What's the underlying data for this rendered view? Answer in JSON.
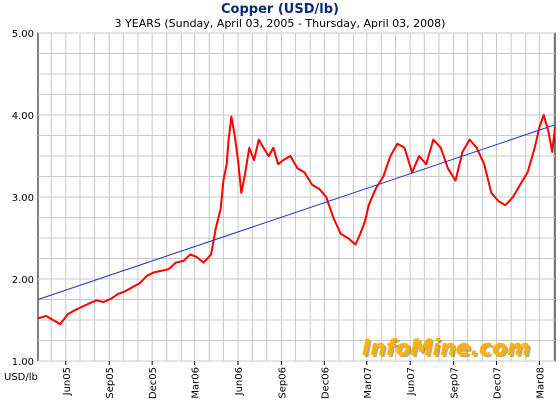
{
  "chart_data": {
    "type": "line",
    "title": "Copper (USD/lb)",
    "subtitle": "3 YEARS (Sunday, April 03, 2005  -  Thursday, April 03, 2008)",
    "ylabel": "USD/lb",
    "ylim": [
      1.0,
      5.0
    ],
    "yticks": [
      "1.00",
      "2.00",
      "3.00",
      "4.00",
      "5.00"
    ],
    "xrange": [
      "2005-04-03",
      "2008-04-03"
    ],
    "xticks": [
      {
        "label": "Jun05",
        "date": "2005-06-01"
      },
      {
        "label": "Sep05",
        "date": "2005-09-01"
      },
      {
        "label": "Dec05",
        "date": "2005-12-01"
      },
      {
        "label": "Mar06",
        "date": "2006-03-01"
      },
      {
        "label": "Jun06",
        "date": "2006-06-01"
      },
      {
        "label": "Sep06",
        "date": "2006-09-01"
      },
      {
        "label": "Dec06",
        "date": "2006-12-01"
      },
      {
        "label": "Mar07",
        "date": "2007-03-01"
      },
      {
        "label": "Jun07",
        "date": "2007-06-01"
      },
      {
        "label": "Sep07",
        "date": "2007-09-01"
      },
      {
        "label": "Dec07",
        "date": "2007-12-01"
      },
      {
        "label": "Mar08",
        "date": "2008-03-01"
      }
    ],
    "grid": true,
    "colors": {
      "price": "#ff0000",
      "trend": "#1f2fd0",
      "grid": "#c8c8c8",
      "title": "#0b2a7a",
      "watermark": "#ffb000"
    },
    "series": [
      {
        "key": "price",
        "x": [
          "2005-04-03",
          "2005-04-20",
          "2005-05-05",
          "2005-05-20",
          "2005-06-05",
          "2005-06-20",
          "2005-07-05",
          "2005-07-20",
          "2005-08-05",
          "2005-08-20",
          "2005-09-05",
          "2005-09-20",
          "2005-10-05",
          "2005-10-20",
          "2005-11-05",
          "2005-11-20",
          "2005-12-05",
          "2005-12-20",
          "2006-01-05",
          "2006-01-20",
          "2006-02-05",
          "2006-02-20",
          "2006-03-05",
          "2006-03-20",
          "2006-04-05",
          "2006-04-15",
          "2006-04-25",
          "2006-05-01",
          "2006-05-08",
          "2006-05-12",
          "2006-05-18",
          "2006-05-25",
          "2006-06-01",
          "2006-06-08",
          "2006-06-15",
          "2006-06-25",
          "2006-07-05",
          "2006-07-15",
          "2006-07-25",
          "2006-08-05",
          "2006-08-15",
          "2006-08-25",
          "2006-09-05",
          "2006-09-20",
          "2006-10-05",
          "2006-10-20",
          "2006-11-05",
          "2006-11-20",
          "2006-12-05",
          "2006-12-20",
          "2007-01-05",
          "2007-01-20",
          "2007-02-05",
          "2007-02-15",
          "2007-02-25",
          "2007-03-05",
          "2007-03-20",
          "2007-04-05",
          "2007-04-20",
          "2007-05-05",
          "2007-05-20",
          "2007-06-05",
          "2007-06-20",
          "2007-07-05",
          "2007-07-20",
          "2007-08-05",
          "2007-08-20",
          "2007-09-05",
          "2007-09-20",
          "2007-10-05",
          "2007-10-20",
          "2007-11-05",
          "2007-11-20",
          "2007-12-05",
          "2007-12-20",
          "2008-01-05",
          "2008-01-20",
          "2008-02-05",
          "2008-02-20",
          "2008-03-01",
          "2008-03-10",
          "2008-03-20",
          "2008-03-28",
          "2008-04-03"
        ],
        "values": [
          1.52,
          1.55,
          1.5,
          1.45,
          1.57,
          1.62,
          1.66,
          1.7,
          1.74,
          1.72,
          1.76,
          1.82,
          1.85,
          1.9,
          1.95,
          2.04,
          2.08,
          2.1,
          2.12,
          2.2,
          2.22,
          2.3,
          2.27,
          2.2,
          2.3,
          2.62,
          2.85,
          3.2,
          3.4,
          3.7,
          3.98,
          3.75,
          3.45,
          3.05,
          3.25,
          3.6,
          3.45,
          3.7,
          3.6,
          3.5,
          3.6,
          3.4,
          3.45,
          3.5,
          3.35,
          3.3,
          3.15,
          3.1,
          3.0,
          2.75,
          2.55,
          2.5,
          2.42,
          2.55,
          2.7,
          2.9,
          3.1,
          3.25,
          3.5,
          3.65,
          3.6,
          3.3,
          3.5,
          3.4,
          3.7,
          3.6,
          3.35,
          3.2,
          3.55,
          3.7,
          3.6,
          3.4,
          3.05,
          2.95,
          2.9,
          3.0,
          3.15,
          3.3,
          3.6,
          3.85,
          4.0,
          3.8,
          3.55,
          3.85
        ]
      },
      {
        "key": "trend",
        "x": [
          "2005-04-03",
          "2008-04-03"
        ],
        "values": [
          1.75,
          3.88
        ]
      }
    ]
  },
  "watermark": {
    "text": "InfoMine.com"
  }
}
